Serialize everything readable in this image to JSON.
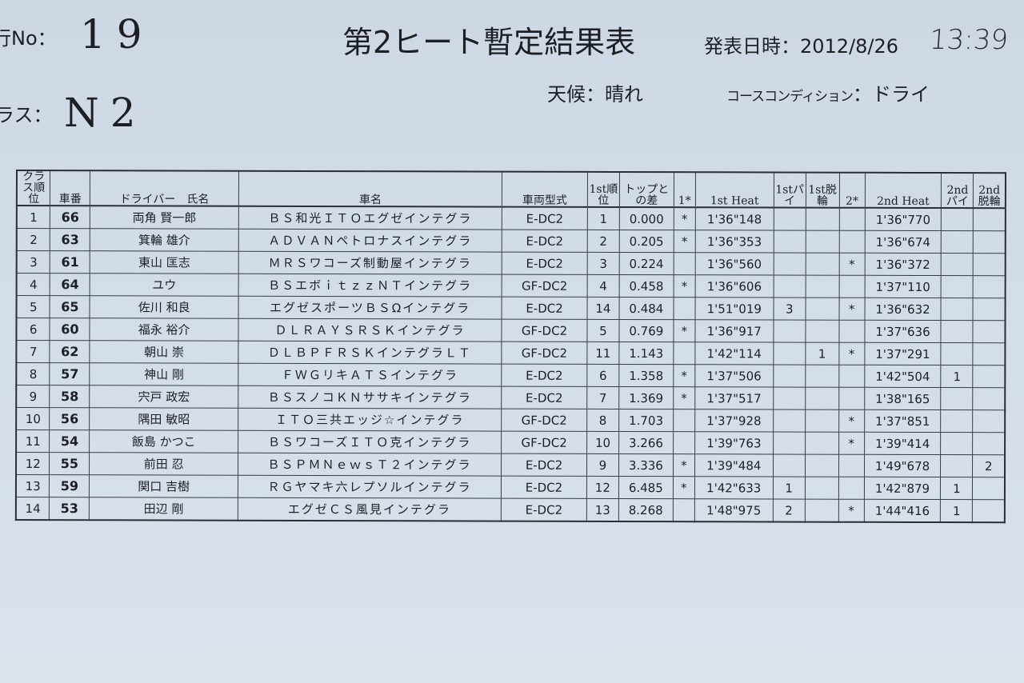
{
  "header": {
    "run_no_label": "行No：",
    "run_no": "19",
    "class_label": "ラス：",
    "class_value": "N2",
    "title": "第2ヒート暫定結果表",
    "published_label": "発表日時：",
    "published_date": "2012/8/26",
    "published_time_handwritten": "13:39",
    "weather_label": "天候：",
    "weather": "晴れ",
    "course_condition_label": "コースコンディション",
    "course_condition_sep": "：",
    "course_condition": "ドライ"
  },
  "table": {
    "columns": [
      "クラス順位",
      "車番",
      "ドライバー　氏名",
      "車名",
      "車両型式",
      "1st順位",
      "トップとの差",
      "1*",
      "1st Heat",
      "1stパイ",
      "1st脱輪",
      "2*",
      "2nd Heat",
      "2ndパイ",
      "2nd脱輪"
    ],
    "rows": [
      [
        "1",
        "66",
        "両角 賢一郎",
        "ＢＳ和光ＩＴＯエグゼインテグラ",
        "E-DC2",
        "1",
        "0.000",
        "*",
        "1'36\"148",
        "",
        "",
        "",
        "1'36\"770",
        "",
        ""
      ],
      [
        "2",
        "63",
        "箕輪 雄介",
        "ＡＤＶＡＮペトロナスインテグラ",
        "E-DC2",
        "2",
        "0.205",
        "*",
        "1'36\"353",
        "",
        "",
        "",
        "1'36\"674",
        "",
        ""
      ],
      [
        "3",
        "61",
        "東山 匡志",
        "ＭＲＳワコーズ制動屋インテグラ",
        "E-DC2",
        "3",
        "0.224",
        "",
        "1'36\"560",
        "",
        "",
        "*",
        "1'36\"372",
        "",
        ""
      ],
      [
        "4",
        "64",
        "ユウ",
        "ＢＳエボｉｔｚｚＮＴインテグラ",
        "GF-DC2",
        "4",
        "0.458",
        "*",
        "1'36\"606",
        "",
        "",
        "",
        "1'37\"110",
        "",
        ""
      ],
      [
        "5",
        "65",
        "佐川 和良",
        "エグゼスポーツＢＳΩインテグラ",
        "E-DC2",
        "14",
        "0.484",
        "",
        "1'51\"019",
        "3",
        "",
        "*",
        "1'36\"632",
        "",
        ""
      ],
      [
        "6",
        "60",
        "福永 裕介",
        "ＤＬＲＡＹＳＲＳＫインテグラ",
        "GF-DC2",
        "5",
        "0.769",
        "*",
        "1'36\"917",
        "",
        "",
        "",
        "1'37\"636",
        "",
        ""
      ],
      [
        "7",
        "62",
        "朝山 崇",
        "ＤＬＢＰＦＲＳＫインテグラＬＴ",
        "GF-DC2",
        "11",
        "1.143",
        "",
        "1'42\"114",
        "",
        "1",
        "*",
        "1'37\"291",
        "",
        ""
      ],
      [
        "8",
        "57",
        "神山 剛",
        "ＦＷＧリキＡＴＳインテグラ",
        "E-DC2",
        "6",
        "1.358",
        "*",
        "1'37\"506",
        "",
        "",
        "",
        "1'42\"504",
        "1",
        ""
      ],
      [
        "9",
        "58",
        "宍戸 政宏",
        "ＢＳスノコＫＮササキインテグラ",
        "E-DC2",
        "7",
        "1.369",
        "*",
        "1'37\"517",
        "",
        "",
        "",
        "1'38\"165",
        "",
        ""
      ],
      [
        "10",
        "56",
        "隅田 敏昭",
        "ＩＴＯ三共エッジ☆インテグラ",
        "GF-DC2",
        "8",
        "1.703",
        "",
        "1'37\"928",
        "",
        "",
        "*",
        "1'37\"851",
        "",
        ""
      ],
      [
        "11",
        "54",
        "飯島 かつこ",
        "ＢＳワコーズＩＴＯ克インテグラ",
        "GF-DC2",
        "10",
        "3.266",
        "",
        "1'39\"763",
        "",
        "",
        "*",
        "1'39\"414",
        "",
        ""
      ],
      [
        "12",
        "55",
        "前田 忍",
        "ＢＳＰＭＮｅｗｓＴ２インテグラ",
        "E-DC2",
        "9",
        "3.336",
        "*",
        "1'39\"484",
        "",
        "",
        "",
        "1'49\"678",
        "",
        "2"
      ],
      [
        "13",
        "59",
        "関口 吉樹",
        "ＲＧヤマキ六レプソルインテグラ",
        "E-DC2",
        "12",
        "6.485",
        "*",
        "1'42\"633",
        "1",
        "",
        "",
        "1'42\"879",
        "1",
        ""
      ],
      [
        "14",
        "53",
        "田辺 剛",
        "エグゼＣＳ風見インテグラ",
        "E-DC2",
        "13",
        "8.268",
        "",
        "1'48\"975",
        "2",
        "",
        "*",
        "1'44\"416",
        "1",
        ""
      ]
    ]
  }
}
